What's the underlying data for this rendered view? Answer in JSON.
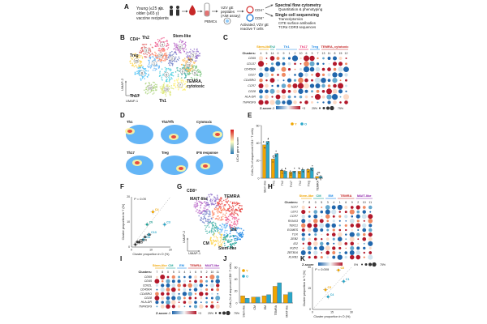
{
  "panel_labels": [
    "A",
    "B",
    "C",
    "D",
    "E",
    "F",
    "G",
    "H",
    "I",
    "J",
    "K"
  ],
  "panel_a": {
    "cohort_young": "Young (≤25 y)",
    "cohort_vs": "vs.",
    "cohort_old": "older (≥65 y)",
    "cohort_desc": "vaccine recipients",
    "pbmc": "PBMCs",
    "stim_line1": "VZV gE",
    "stim_line2": "peptides",
    "stim_line3": "(AIM assay)",
    "activated_line1": "Activated, VZV gE",
    "activated_line2": "reactive T cells",
    "cd4": "CD4⁺",
    "cd8": "CD8⁺",
    "readout1_title": "Spectral flow cytometry",
    "readout1_sub": "Quantitation & phenotyping",
    "readout2_title": "Single cell sequencing",
    "readout2_items": [
      "Transcriptomics",
      "CITE surface antibodies",
      "TCRα CDR3 sequences"
    ],
    "colors": {
      "young": "#f0a500",
      "old": "#2aa7c9",
      "red": "#d32f2f"
    }
  },
  "panel_b": {
    "title": "CD4⁺",
    "labels": {
      "th2": "Th2",
      "stem": "Stem-like",
      "treg": "Treg",
      "temra1": "TEMRA,",
      "temra2": "cytotoxic",
      "th17": "Th17",
      "th1": "Th1",
      "ifn": "IFN"
    },
    "axis_x": "UMAP-1",
    "axis_y": "UMAP-2",
    "cluster_numbers": [
      "3",
      "4",
      "11",
      "5",
      "2",
      "1",
      "8",
      "6",
      "0",
      "9",
      "12",
      "10",
      "7",
      "15",
      "13",
      "14"
    ]
  },
  "panel_c": {
    "group_labels": [
      "Stem-like",
      "Th2",
      "Th1",
      "Th17",
      "Treg",
      "TEMRA, cytotoxic"
    ],
    "clusters_label": "Clusters:",
    "clusters": [
      "4",
      "5",
      "14",
      "0",
      "9",
      "1",
      "2",
      "10",
      "6",
      "3",
      "7",
      "13",
      "11",
      "8",
      "15",
      "12"
    ],
    "genes": [
      "CD69",
      "CD137",
      "CD45RA",
      "CD27",
      "CD45RO",
      "CCR7",
      "CD28",
      "HLA-DR",
      "TNFRSF9"
    ],
    "zscore_label": "Z-score",
    "zmin": "-3",
    "zmax": "+3",
    "size_label_1": "25%",
    "size_label_2": "75%"
  },
  "panel_d": {
    "titles": [
      "Th1",
      "Th2/Tfh",
      "Cytotoxic",
      "Th17",
      "Treg",
      "IFN response"
    ],
    "colorbar_label": "UCell gene score"
  },
  "panel_e": {
    "legend_y": "Y",
    "legend_o": "O",
    "ylabel": "Cells (% of sequenced CD4⁺ T cells)",
    "categories": [
      "Stem-like",
      "Th1",
      "Th2",
      "Th17",
      "Th2",
      "Treg",
      "TEMRA"
    ],
    "ns_label": "ns"
  },
  "panel_f": {
    "p_label": "P = 0.05",
    "xlabel": "Cluster proportion in O (%)",
    "ylabel": "Cluster proportion in Y (%)",
    "point_labels": [
      "C4",
      "C3",
      "C6",
      "C13",
      "C8",
      "C11",
      "C14",
      "C15",
      "C9"
    ]
  },
  "panel_g": {
    "title": "CD8⁺",
    "labels": {
      "mait": "MAIT-like",
      "temra": "TEMRA",
      "em": "EM",
      "cm": "CM",
      "stem": "Stem-like"
    },
    "axis_x": "UMAP-1",
    "axis_y": "UMAP-2"
  },
  "panel_h": {
    "group_labels": [
      "Stem-like",
      "CM",
      "EM",
      "TEMRA",
      "MAIT-like"
    ],
    "clusters_label": "Clusters:",
    "clusters": [
      "7",
      "8",
      "0",
      "5",
      "3",
      "4",
      "1",
      "6",
      "9",
      "2",
      "10",
      "11"
    ],
    "genes": [
      "TCF7",
      "LEF1",
      "CCR7",
      "RUNX3",
      "TBX21",
      "EOMES",
      "TOX",
      "ZEB2",
      "ID2",
      "IKZF2",
      "ZBTB16",
      "KLRB1"
    ],
    "zscore_label": "Z-score",
    "size_label_1": "0%",
    "size_label_2": "75%"
  },
  "panel_i": {
    "group_labels": [
      "Stem-like",
      "CM",
      "EM",
      "TEMRA",
      "MAIT-like"
    ],
    "clusters_label": "Clusters:",
    "clusters": [
      "7",
      "8",
      "0",
      "5",
      "3",
      "4",
      "1",
      "6",
      "9",
      "2",
      "10",
      "11"
    ],
    "genes": [
      "CD69",
      "CD45",
      "CD62L",
      "CD45RA",
      "CD45RO",
      "CD28",
      "HLA-DR",
      "TNFRSF9"
    ],
    "zscore_label": "Z-score",
    "zmin": "-3",
    "zmax": "+3",
    "size_label_1": "25%",
    "size_label_2": "75%"
  },
  "panel_j": {
    "legend_y": "Y",
    "legend_o": "O",
    "ylabel": "Cells (% of sequenced CD8⁺ T cells)",
    "categories": [
      "Stem-like",
      "CM",
      "EM",
      "TEMRA",
      "MAIT-like"
    ]
  },
  "panel_k": {
    "p_label": "P = 0.009",
    "xlabel": "Cluster proportion in O (%)",
    "ylabel": "Cluster proportion in Y (%)",
    "point_labels": [
      "C1",
      "C3",
      "C4",
      "C0"
    ]
  },
  "chart_data": [
    {
      "panel": "E",
      "type": "bar",
      "categories": [
        "Stem-like",
        "Th1",
        "Th2",
        "Th17",
        "Th2",
        "Treg",
        "TEMRA"
      ],
      "ylabel": "Cells (% of sequenced CD4⁺ T cells)",
      "ylim": [
        0,
        60
      ],
      "series": [
        {
          "name": "Y",
          "values": [
            38,
            22,
            9,
            7,
            8,
            10,
            2
          ]
        },
        {
          "name": "O",
          "values": [
            42,
            28,
            8,
            8,
            10,
            12,
            2
          ]
        }
      ]
    },
    {
      "panel": "F",
      "type": "scatter",
      "xlabel": "Cluster proportion in O (%)",
      "ylabel": "Cluster proportion in Y (%)",
      "xlim": [
        0,
        20
      ],
      "ylim": [
        0,
        20
      ],
      "points": [
        {
          "label": "C4",
          "x": 11,
          "y": 14
        },
        {
          "label": "C3",
          "x": 17,
          "y": 9
        },
        {
          "label": "C6",
          "x": 8,
          "y": 9
        },
        {
          "label": "C13",
          "x": 9,
          "y": 5
        },
        {
          "label": "C8",
          "x": 7,
          "y": 4
        },
        {
          "label": "C11",
          "x": 6,
          "y": 3
        },
        {
          "label": "C14",
          "x": 4,
          "y": 2
        },
        {
          "label": "C15",
          "x": 2,
          "y": 1
        },
        {
          "label": "C9",
          "x": 3,
          "y": 2
        }
      ]
    },
    {
      "panel": "J",
      "type": "bar",
      "categories": [
        "Stem-like",
        "CM",
        "EM",
        "TEMRA",
        "MAIT-like"
      ],
      "ylabel": "Cells (% of sequenced CD8⁺ T cells)",
      "ylim": [
        0,
        60
      ],
      "series": [
        {
          "name": "Y",
          "values": [
            12,
            10,
            12,
            28,
            14
          ]
        },
        {
          "name": "O",
          "values": [
            8,
            10,
            14,
            34,
            18
          ]
        }
      ]
    },
    {
      "panel": "K",
      "type": "scatter",
      "xlabel": "Cluster proportion in O (%)",
      "ylabel": "Cluster proportion in Y (%)",
      "xlim": [
        0,
        30
      ],
      "ylim": [
        0,
        30
      ],
      "points": [
        {
          "label": "C1",
          "x": 24,
          "y": 20
        },
        {
          "label": "C3",
          "x": 10,
          "y": 14
        },
        {
          "label": "C4",
          "x": 12,
          "y": 9
        },
        {
          "label": "C0",
          "x": 20,
          "y": 28
        }
      ]
    }
  ]
}
